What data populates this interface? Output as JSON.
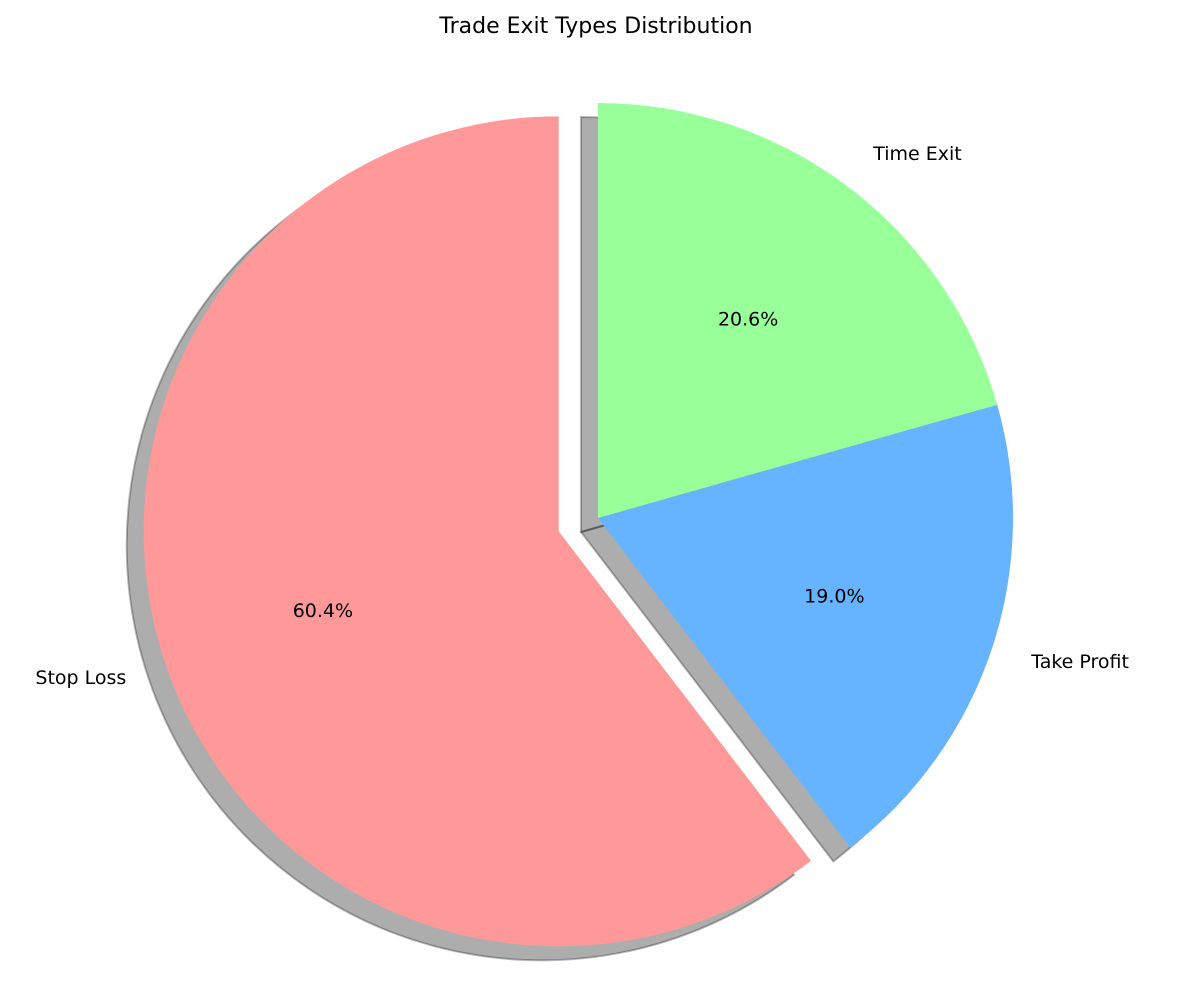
{
  "chart_data": {
    "type": "pie",
    "title": "Trade Exit Types Distribution",
    "slices": [
      {
        "label": "Stop Loss",
        "value": 60.4,
        "pct_label": "60.4%",
        "color": "#ff9999",
        "exploded": true
      },
      {
        "label": "Take Profit",
        "value": 19.0,
        "pct_label": "19.0%",
        "color": "#66b3ff",
        "exploded": false
      },
      {
        "label": "Time Exit",
        "value": 20.6,
        "pct_label": "20.6%",
        "color": "#99ff99",
        "exploded": false
      }
    ],
    "start_angle_deg": 90,
    "direction": "counterclockwise",
    "shadow": true
  }
}
